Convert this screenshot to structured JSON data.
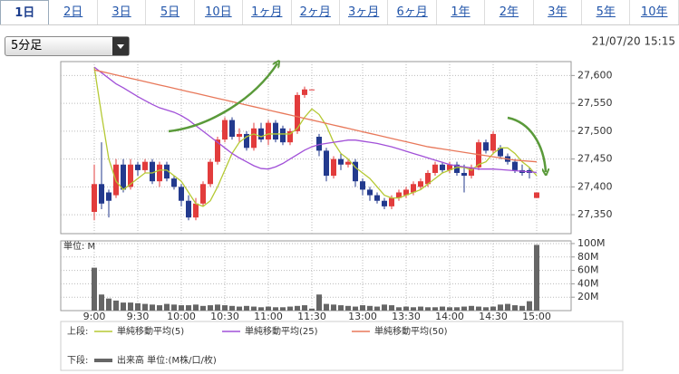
{
  "tabs": [
    "1日",
    "2日",
    "3日",
    "5日",
    "10日",
    "1ヶ月",
    "2ヶ月",
    "3ヶ月",
    "6ヶ月",
    "1年",
    "2年",
    "3年",
    "5年",
    "10年"
  ],
  "selected_tab": 0,
  "dropdown": "5分足",
  "timestamp": "21/07/20 15:15",
  "chart_data": {
    "type": "candlestick",
    "categories": [
      "9:00",
      null,
      null,
      null,
      null,
      null,
      "9:30",
      null,
      null,
      null,
      null,
      null,
      "10:00",
      null,
      null,
      null,
      null,
      null,
      "10:30",
      null,
      null,
      null,
      null,
      null,
      "11:00",
      null,
      null,
      null,
      null,
      null,
      "11:30",
      null,
      null,
      null,
      null,
      null,
      null,
      "13:00",
      null,
      null,
      null,
      null,
      null,
      "13:30",
      null,
      null,
      null,
      null,
      null,
      "14:00",
      null,
      null,
      null,
      null,
      null,
      "14:30",
      null,
      null,
      null,
      null,
      null,
      "15:00"
    ],
    "open": [
      27355,
      27405,
      27390,
      27385,
      27440,
      27400,
      27440,
      27430,
      27445,
      27410,
      27440,
      27415,
      27400,
      27375,
      27345,
      27370,
      27405,
      27445,
      27485,
      27520,
      27490,
      27495,
      27470,
      27505,
      27485,
      27515,
      27505,
      27480,
      27500,
      27565,
      27575,
      27490,
      27465,
      27420,
      27450,
      27440,
      27445,
      27410,
      27395,
      27385,
      27375,
      27365,
      27380,
      27385,
      27390,
      27400,
      27405,
      27425,
      27440,
      27430,
      27440,
      27425,
      27420,
      27435,
      27480,
      27465,
      27470,
      27455,
      27445,
      27430,
      27430,
      27380
    ],
    "high": [
      27440,
      27480,
      27395,
      27450,
      27450,
      27450,
      27445,
      27450,
      27450,
      27445,
      27445,
      27420,
      27405,
      27385,
      27380,
      27410,
      27450,
      27490,
      27525,
      27525,
      27505,
      27500,
      27515,
      27515,
      27520,
      27520,
      27510,
      27505,
      27570,
      27580,
      27575,
      27495,
      27470,
      27455,
      27460,
      27450,
      27450,
      27415,
      27400,
      27390,
      27380,
      27385,
      27395,
      27400,
      27410,
      27415,
      27430,
      27445,
      27445,
      27445,
      27445,
      27440,
      27440,
      27485,
      27485,
      27500,
      27475,
      27460,
      27450,
      27440,
      27435,
      27390
    ],
    "low": [
      27340,
      27360,
      27345,
      27380,
      27390,
      27395,
      27420,
      27425,
      27405,
      27400,
      27410,
      27395,
      27365,
      27340,
      27340,
      27365,
      27400,
      27440,
      27480,
      27485,
      27480,
      27465,
      27465,
      27480,
      27475,
      27480,
      27475,
      27475,
      27495,
      27560,
      27575,
      27455,
      27410,
      27415,
      27430,
      27435,
      27400,
      27385,
      27375,
      27370,
      27360,
      27360,
      27375,
      27380,
      27385,
      27395,
      27400,
      27420,
      27425,
      27425,
      27420,
      27390,
      27415,
      27430,
      27460,
      27460,
      27450,
      27440,
      27425,
      27420,
      27415,
      27380
    ],
    "close": [
      27405,
      27370,
      27375,
      27440,
      27395,
      27440,
      27430,
      27445,
      27410,
      27440,
      27415,
      27400,
      27375,
      27345,
      27370,
      27405,
      27445,
      27485,
      27520,
      27490,
      27495,
      27470,
      27505,
      27485,
      27515,
      27485,
      27480,
      27500,
      27565,
      27575,
      27575,
      27465,
      27420,
      27450,
      27440,
      27445,
      27410,
      27395,
      27385,
      27375,
      27365,
      27380,
      27390,
      27395,
      27405,
      27410,
      27425,
      27440,
      27430,
      27440,
      27425,
      27420,
      27435,
      27480,
      27465,
      27495,
      27455,
      27445,
      27430,
      27425,
      27425,
      27390
    ],
    "up_color": "#e23c3c",
    "down_color": "#233a8e",
    "ylim": [
      27316,
      27625
    ],
    "yticks": [
      {
        "value": 27350,
        "label": "27,350"
      },
      {
        "value": 27400,
        "label": "27,400"
      },
      {
        "value": 27450,
        "label": "27,450"
      },
      {
        "value": 27500,
        "label": "27,500"
      },
      {
        "value": 27550,
        "label": "27,550"
      },
      {
        "value": 27600,
        "label": "27,600"
      }
    ],
    "grid": true,
    "series": [
      {
        "name": "単純移動平均(5)",
        "color": "#b5c934",
        "values": [
          27615,
          27530,
          27450,
          27410,
          27395,
          27405,
          27415,
          27425,
          27425,
          27430,
          27430,
          27420,
          27410,
          27390,
          27370,
          27365,
          27375,
          27400,
          27430,
          27460,
          27480,
          27490,
          27495,
          27490,
          27495,
          27495,
          27495,
          27495,
          27505,
          27525,
          27540,
          27530,
          27510,
          27480,
          27460,
          27450,
          27435,
          27425,
          27415,
          27400,
          27385,
          27380,
          27380,
          27385,
          27390,
          27395,
          27405,
          27415,
          27425,
          27430,
          27435,
          27435,
          27430,
          27440,
          27445,
          27460,
          27470,
          27470,
          27460,
          27445,
          27435,
          27420
        ]
      },
      {
        "name": "単純移動平均(25)",
        "color": "#a150d8",
        "values": [
          27615,
          27605,
          27595,
          27585,
          27578,
          27570,
          27562,
          27555,
          27548,
          27542,
          27538,
          27534,
          27528,
          27520,
          27510,
          27500,
          27490,
          27480,
          27470,
          27460,
          27452,
          27445,
          27438,
          27433,
          27432,
          27436,
          27442,
          27450,
          27458,
          27466,
          27472,
          27476,
          27478,
          27480,
          27482,
          27484,
          27484,
          27482,
          27480,
          27478,
          27475,
          27472,
          27468,
          27464,
          27460,
          27456,
          27452,
          27448,
          27444,
          27440,
          27438,
          27436,
          27434,
          27432,
          27432,
          27432,
          27431,
          27430,
          27429,
          27428,
          27427,
          27426
        ]
      },
      {
        "name": "単純移動平均(50)",
        "color": "#e8785a",
        "values": [
          27610,
          27607,
          27604,
          27601,
          27598,
          27595,
          27592,
          27589,
          27586,
          27583,
          27580,
          27577,
          27574,
          27571,
          27568,
          27565,
          27562,
          27559,
          27556,
          27553,
          27550,
          27547,
          27544,
          27541,
          27538,
          27535,
          27532,
          27529,
          27526,
          27523,
          27520,
          27517,
          27514,
          27511,
          27508,
          27505,
          27502,
          27499,
          27496,
          27493,
          27490,
          27487,
          27484,
          27481,
          27478,
          27475,
          27472,
          27470,
          27468,
          27466,
          27464,
          27462,
          27460,
          27458,
          27456,
          27454,
          27452,
          27450,
          27448,
          27447,
          27446,
          27445
        ]
      }
    ],
    "volume": {
      "name": "出来高 単位:(M株/口/枚)",
      "unit_label": "単位: M",
      "color": "#666666",
      "values": [
        64,
        24,
        18,
        15,
        12,
        12,
        11,
        10,
        9,
        8,
        10,
        9,
        8,
        8,
        9,
        7,
        8,
        9,
        8,
        7,
        6,
        7,
        6,
        5,
        6,
        5,
        5,
        6,
        7,
        8,
        3,
        24,
        10,
        9,
        8,
        7,
        6,
        8,
        7,
        6,
        9,
        8,
        5,
        6,
        5,
        6,
        5,
        5,
        6,
        5,
        5,
        6,
        7,
        6,
        5,
        6,
        9,
        10,
        8,
        7,
        14,
        98
      ],
      "ylim": [
        0,
        104
      ],
      "yticks": [
        {
          "value": 20,
          "label": "20M"
        },
        {
          "value": 40,
          "label": "40M"
        },
        {
          "value": 60,
          "label": "60M"
        },
        {
          "value": 80,
          "label": "80M"
        },
        {
          "value": 100,
          "label": "100M"
        }
      ]
    },
    "legend_upper": "上段:",
    "legend_lower": "下段:"
  }
}
